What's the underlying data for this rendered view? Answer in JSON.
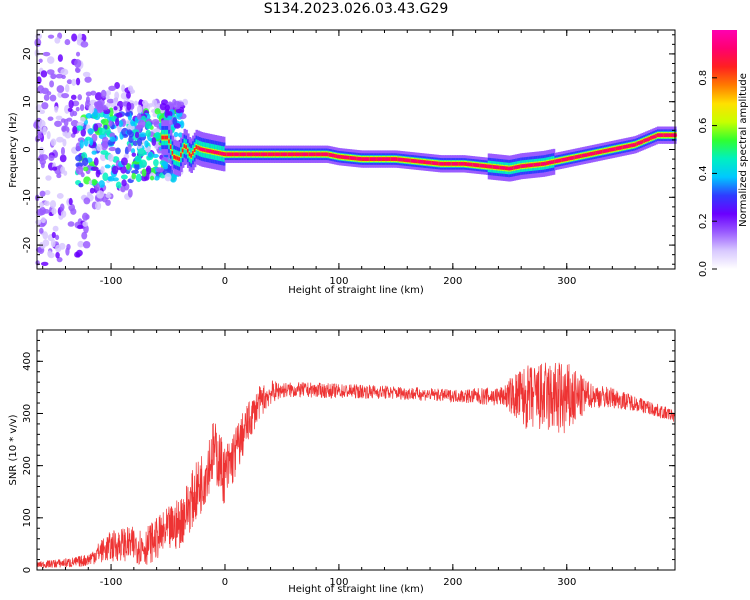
{
  "title": "S134.2023.026.03.43.G29",
  "colors": {
    "snr_line": "#ee3333",
    "colormap": [
      "#ffffff",
      "#d8c8ff",
      "#9a5cff",
      "#6a00ff",
      "#2f3cff",
      "#00c8ff",
      "#00f0c0",
      "#30ff30",
      "#c8ff00",
      "#ffe000",
      "#ff7a00",
      "#ff2020",
      "#ff0070",
      "#ff00b0"
    ]
  },
  "chart_data": [
    {
      "type": "heatmap",
      "name": "spectrogram",
      "xlabel": "Height of straight line (km)",
      "ylabel": "Frequency (Hz)",
      "xlim": [
        -165,
        395
      ],
      "ylim": [
        -25,
        25
      ],
      "xticks": [
        -100,
        0,
        100,
        200,
        300
      ],
      "xtick_labels": [
        "-100",
        "0",
        "100",
        "200",
        "300"
      ],
      "yticks": [
        -20,
        -10,
        0,
        10,
        20
      ],
      "ytick_labels": [
        "-20",
        "-10",
        "0",
        "10",
        "20"
      ],
      "colorbar": {
        "label": "Normalized spectral amplitude",
        "range": [
          0,
          1
        ],
        "ticks": [
          0.0,
          0.2,
          0.4,
          0.6,
          0.8
        ],
        "tick_labels": [
          "0.0",
          "0.2",
          "0.4",
          "0.6",
          "0.8"
        ]
      },
      "dominant_frequency_track": {
        "x": [
          -50,
          -45,
          -40,
          -35,
          -30,
          -25,
          -20,
          0,
          50,
          90,
          100,
          120,
          150,
          170,
          190,
          210,
          230,
          250,
          260,
          280,
          300,
          320,
          340,
          360,
          380,
          395
        ],
        "y": [
          2.5,
          -1.5,
          -2,
          1,
          -1.5,
          0.5,
          0,
          -1,
          -1,
          -1,
          -1.5,
          -2,
          -2,
          -2.5,
          -3,
          -3,
          -3.5,
          -4,
          -3.5,
          -3,
          -2,
          -1,
          0,
          1,
          3,
          3
        ]
      }
    },
    {
      "type": "line",
      "name": "snr",
      "xlabel": "Height of straight line (km)",
      "ylabel": "SNR (10 * v/v)",
      "xlim": [
        -165,
        395
      ],
      "ylim": [
        0,
        460
      ],
      "xticks": [
        -100,
        0,
        100,
        200,
        300
      ],
      "xtick_labels": [
        "-100",
        "0",
        "100",
        "200",
        "300"
      ],
      "yticks": [
        0,
        100,
        200,
        300,
        400
      ],
      "ytick_labels": [
        "0",
        "100",
        "200",
        "300",
        "400"
      ],
      "series": [
        {
          "x": [
            -165,
            -150,
            -130,
            -120,
            -110,
            -100,
            -90,
            -80,
            -70,
            -60,
            -50,
            -40,
            -30,
            -20,
            -15,
            -10,
            -5,
            0,
            10,
            20,
            30,
            40,
            50,
            75,
            100,
            125,
            150,
            175,
            200,
            225,
            240,
            250,
            260,
            270,
            280,
            290,
            300,
            310,
            320,
            340,
            360,
            380,
            395
          ],
          "y": [
            10,
            12,
            15,
            20,
            35,
            45,
            50,
            48,
            45,
            60,
            75,
            90,
            130,
            170,
            200,
            230,
            210,
            180,
            230,
            280,
            320,
            340,
            345,
            345,
            343,
            342,
            340,
            337,
            334,
            333,
            332,
            335,
            330,
            330,
            330,
            330,
            325,
            330,
            335,
            330,
            320,
            305,
            295
          ]
        }
      ],
      "noise_amplitude": {
        "x": [
          -165,
          -120,
          -100,
          -60,
          -40,
          -20,
          0,
          20,
          50,
          200,
          245,
          260,
          280,
          300,
          320,
          360,
          395
        ],
        "y": [
          6,
          12,
          30,
          40,
          50,
          60,
          60,
          40,
          15,
          12,
          20,
          60,
          70,
          75,
          25,
          15,
          12
        ]
      }
    }
  ]
}
